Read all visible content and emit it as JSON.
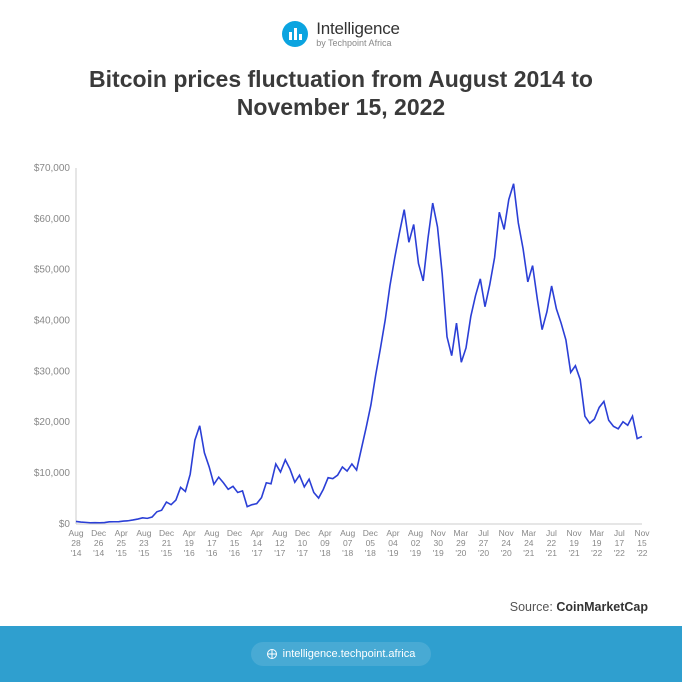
{
  "brand": {
    "main": "Intelligence",
    "sub": "by Techpoint Africa",
    "logo_bg": "#0ba4e0"
  },
  "title": "Bitcoin prices fluctuation from August 2014 to November 15, 2022",
  "chart": {
    "type": "line",
    "ylim": [
      0,
      70000
    ],
    "ytick_step": 10000,
    "yticks": [
      "$0",
      "$10,000",
      "$20,000",
      "$30,000",
      "$40,000",
      "$50,000",
      "$60,000",
      "$70,000"
    ],
    "line_color": "#2b3fd6",
    "axis_color": "#cccccc",
    "grid_color": "#eeeeee",
    "tick_text_color": "#888888",
    "tick_fontsize": 10,
    "xtick_fontsize": 8.5,
    "background_color": "#ffffff",
    "x_labels": [
      [
        "Aug",
        "28",
        "'14"
      ],
      [
        "Dec",
        "26",
        "'14"
      ],
      [
        "Apr",
        "25",
        "'15"
      ],
      [
        "Aug",
        "23",
        "'15"
      ],
      [
        "Dec",
        "21",
        "'15"
      ],
      [
        "Apr",
        "19",
        "'16"
      ],
      [
        "Aug",
        "17",
        "'16"
      ],
      [
        "Dec",
        "15",
        "'16"
      ],
      [
        "Apr",
        "14",
        "'17"
      ],
      [
        "Aug",
        "12",
        "'17"
      ],
      [
        "Dec",
        "10",
        "'17"
      ],
      [
        "Apr",
        "09",
        "'18"
      ],
      [
        "Aug",
        "07",
        "'18"
      ],
      [
        "Dec",
        "05",
        "'18"
      ],
      [
        "Apr",
        "04",
        "'19"
      ],
      [
        "Aug",
        "02",
        "'19"
      ],
      [
        "Nov",
        "30",
        "'19"
      ],
      [
        "Mar",
        "29",
        "'20"
      ],
      [
        "Jul",
        "27",
        "'20"
      ],
      [
        "Nov",
        "24",
        "'20"
      ],
      [
        "Mar",
        "24",
        "'21"
      ],
      [
        "Jul",
        "22",
        "'21"
      ],
      [
        "Nov",
        "19",
        "'21"
      ],
      [
        "Mar",
        "19",
        "'22"
      ],
      [
        "Jul",
        "17",
        "'22"
      ],
      [
        "Nov",
        "15",
        "'22"
      ]
    ],
    "series": [
      500,
      380,
      320,
      240,
      250,
      230,
      280,
      420,
      430,
      450,
      580,
      620,
      780,
      970,
      1200,
      1100,
      1350,
      2400,
      2700,
      4300,
      3800,
      4700,
      7200,
      6400,
      9800,
      16500,
      19300,
      14000,
      11200,
      7800,
      9200,
      8100,
      6800,
      7400,
      6200,
      6500,
      3400,
      3800,
      4000,
      5200,
      8100,
      7900,
      11800,
      10200,
      12600,
      10800,
      8200,
      9600,
      7300,
      8800,
      6200,
      5100,
      6800,
      9100,
      8900,
      9600,
      11200,
      10400,
      11800,
      10600,
      14800,
      18900,
      23400,
      29200,
      34500,
      40100,
      46800,
      52300,
      57200,
      61800,
      55400,
      58900,
      51200,
      47800,
      56200,
      63100,
      58400,
      49200,
      36800,
      33100,
      39500,
      31800,
      34600,
      40800,
      44900,
      48200,
      42700,
      47100,
      52400,
      61300,
      57900,
      63800,
      66900,
      59200,
      54100,
      47600,
      50800,
      44100,
      38200,
      41700,
      46800,
      42300,
      39500,
      36200,
      29800,
      31100,
      28400,
      21200,
      19800,
      20600,
      22900,
      24100,
      20400,
      19200,
      18700,
      20100,
      19400,
      21200,
      16800,
      17200
    ]
  },
  "source": {
    "label": "Source:",
    "name": "CoinMarketCap"
  },
  "footer": {
    "url": "intelligence.techpoint.africa",
    "bg": "#2f9fcf"
  }
}
